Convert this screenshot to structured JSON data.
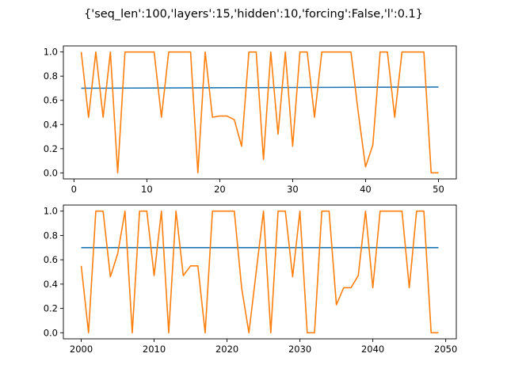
{
  "figure": {
    "suptitle": "{'seq_len':100,'layers':15,'hidden':10,'forcing':False,'l':0.1}"
  },
  "colors": {
    "series_blue": "#1f77b4",
    "series_orange": "#ff7f0e"
  },
  "chart_data": [
    {
      "type": "line",
      "xlim": [
        -1.45,
        52.45
      ],
      "ylim": [
        -0.05,
        1.05
      ],
      "xticks": [
        0,
        10,
        20,
        30,
        40,
        50
      ],
      "yticks": [
        0.0,
        0.2,
        0.4,
        0.6,
        0.8,
        1.0
      ],
      "xtick_labels": [
        "0",
        "10",
        "20",
        "30",
        "40",
        "50"
      ],
      "ytick_labels": [
        "0.0",
        "0.2",
        "0.4",
        "0.6",
        "0.8",
        "1.0"
      ],
      "grid": false,
      "series": [
        {
          "color": "#1f77b4",
          "x": [
            1,
            50
          ],
          "y": [
            0.7,
            0.71
          ]
        },
        {
          "color": "#ff7f0e",
          "x": [
            1,
            2,
            3,
            4,
            5,
            6,
            7,
            8,
            9,
            10,
            11,
            12,
            13,
            14,
            15,
            16,
            17,
            18,
            19,
            20,
            21,
            22,
            23,
            24,
            25,
            26,
            27,
            28,
            29,
            30,
            31,
            32,
            33,
            34,
            35,
            36,
            37,
            38,
            39,
            40,
            41,
            42,
            43,
            44,
            45,
            46,
            47,
            48,
            49,
            50
          ],
          "y": [
            1.0,
            0.46,
            1.0,
            0.46,
            1.0,
            0.0,
            1.0,
            1.0,
            1.0,
            1.0,
            1.0,
            0.46,
            1.0,
            1.0,
            1.0,
            1.0,
            0.0,
            1.0,
            0.46,
            0.47,
            0.47,
            0.44,
            0.22,
            1.0,
            1.0,
            0.11,
            1.0,
            0.32,
            1.0,
            0.22,
            1.0,
            1.0,
            0.46,
            1.0,
            1.0,
            1.0,
            1.0,
            1.0,
            0.5,
            0.05,
            0.23,
            1.0,
            1.0,
            0.46,
            1.0,
            1.0,
            1.0,
            1.0,
            0.0,
            0.0
          ]
        }
      ]
    },
    {
      "type": "line",
      "xlim": [
        1997.55,
        2051.45
      ],
      "ylim": [
        -0.05,
        1.05
      ],
      "xticks": [
        2000,
        2010,
        2020,
        2030,
        2040,
        2050
      ],
      "yticks": [
        0.0,
        0.2,
        0.4,
        0.6,
        0.8,
        1.0
      ],
      "xtick_labels": [
        "2000",
        "2010",
        "2020",
        "2030",
        "2040",
        "2050"
      ],
      "ytick_labels": [
        "0.0",
        "0.2",
        "0.4",
        "0.6",
        "0.8",
        "1.0"
      ],
      "grid": false,
      "series": [
        {
          "color": "#1f77b4",
          "x": [
            2000,
            2049
          ],
          "y": [
            0.7,
            0.7
          ]
        },
        {
          "color": "#ff7f0e",
          "x": [
            2000,
            2001,
            2002,
            2003,
            2004,
            2005,
            2006,
            2007,
            2008,
            2009,
            2010,
            2011,
            2012,
            2013,
            2014,
            2015,
            2016,
            2017,
            2018,
            2019,
            2020,
            2021,
            2022,
            2023,
            2024,
            2025,
            2026,
            2027,
            2028,
            2029,
            2030,
            2031,
            2032,
            2033,
            2034,
            2035,
            2036,
            2037,
            2038,
            2039,
            2040,
            2041,
            2042,
            2043,
            2044,
            2045,
            2046,
            2047,
            2048,
            2049
          ],
          "y": [
            0.55,
            0.0,
            1.0,
            1.0,
            0.46,
            0.65,
            1.0,
            0.0,
            1.0,
            1.0,
            0.47,
            1.0,
            0.0,
            1.0,
            0.47,
            0.55,
            0.55,
            0.0,
            1.0,
            1.0,
            1.0,
            1.0,
            0.37,
            0.0,
            0.5,
            1.0,
            0.0,
            1.0,
            1.0,
            0.46,
            1.0,
            0.0,
            0.0,
            1.0,
            1.0,
            0.23,
            0.37,
            0.37,
            0.47,
            1.0,
            0.37,
            1.0,
            1.0,
            1.0,
            1.0,
            0.37,
            1.0,
            1.0,
            0.0,
            0.0
          ]
        }
      ]
    }
  ]
}
